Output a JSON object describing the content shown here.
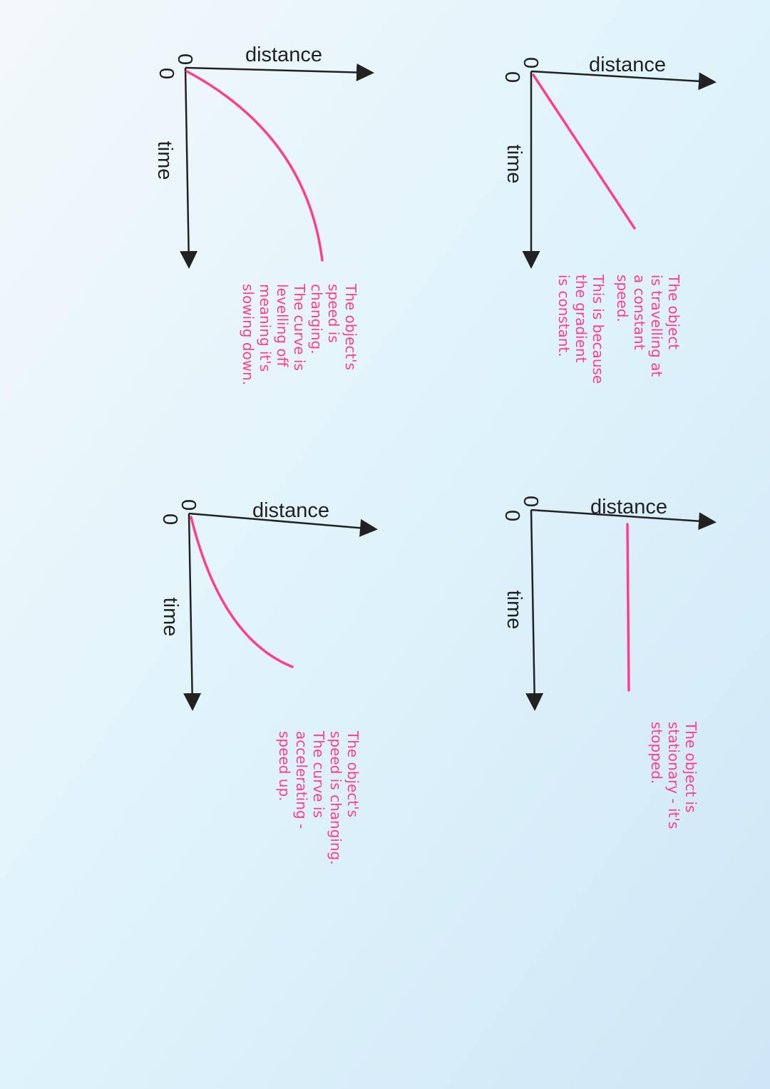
{
  "panels": [
    {
      "distance_label": "distance",
      "time_label": "time",
      "origin_labels": [
        "0",
        "0"
      ],
      "note": [
        "The object",
        "is travelling at",
        "a constant",
        "speed.",
        "This is because",
        "the gradient",
        "is constant."
      ]
    },
    {
      "distance_label": "distance",
      "time_label": "time",
      "origin_labels": [
        "0",
        "0"
      ],
      "note": [
        "The object is",
        "stationary - it's",
        "stopped."
      ]
    },
    {
      "distance_label": "distance",
      "time_label": "time",
      "origin_labels": [
        "0",
        "0"
      ],
      "note": [
        "The object's",
        "speed is",
        "changing.",
        "The curve is",
        "levelling off",
        "meaning it's",
        "slowing down."
      ]
    },
    {
      "distance_label": "distance",
      "time_label": "time",
      "origin_labels": [
        "0",
        "0"
      ],
      "note": [
        "The object's",
        "speed is changing.",
        "The curve is",
        "accelerating -",
        "speed up."
      ]
    }
  ]
}
